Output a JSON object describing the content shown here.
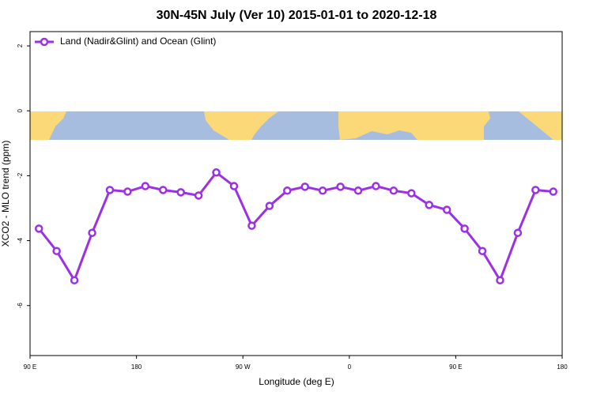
{
  "chart_data": {
    "type": "line",
    "title": "30N-45N July (Ver 10)   2015-01-01 to 2020-12-18",
    "x_label": "Longitude (deg E)",
    "y_label": "XCO2 - MLO trend (ppm)",
    "x": [
      97.5,
      112.5,
      127.5,
      142.5,
      157.5,
      172.5,
      187.5,
      202.5,
      217.5,
      232.5,
      247.5,
      262.5,
      277.5,
      292.5,
      307.5,
      322.5,
      337.5,
      352.5,
      367.5,
      382.5,
      397.5,
      412.5,
      427.5,
      442.5,
      457.5,
      472.5,
      487.5,
      502.5,
      517.5,
      532.5
    ],
    "series": [
      {
        "name": "Land (Nadir&Glint) and Ocean (Glint)",
        "color": "#9b30e6",
        "values": [
          -3.63,
          -4.32,
          -5.22,
          -3.76,
          -2.44,
          -2.49,
          -2.32,
          -2.44,
          -2.51,
          -2.61,
          -1.9,
          -2.32,
          -3.54,
          -2.93,
          -2.46,
          -2.34,
          -2.46,
          -2.34,
          -2.46,
          -2.32,
          -2.46,
          -2.54,
          -2.9,
          -3.05,
          -3.63,
          -4.32,
          -5.22,
          -3.76,
          -2.44,
          -2.49
        ]
      }
    ],
    "xlim": [
      90,
      540
    ],
    "xticks": [
      {
        "value": 90,
        "label": "90 E"
      },
      180,
      {
        "value": 270,
        "label": "90 W"
      },
      {
        "value": 360,
        "label": "0"
      },
      {
        "value": 450,
        "label": "90 E"
      },
      {
        "value": 540,
        "label": "180"
      }
    ],
    "ylim": [
      -7.54,
      2.44
    ],
    "yticks": [
      -6,
      -4,
      -2,
      0,
      2
    ],
    "legend": "top-left"
  }
}
